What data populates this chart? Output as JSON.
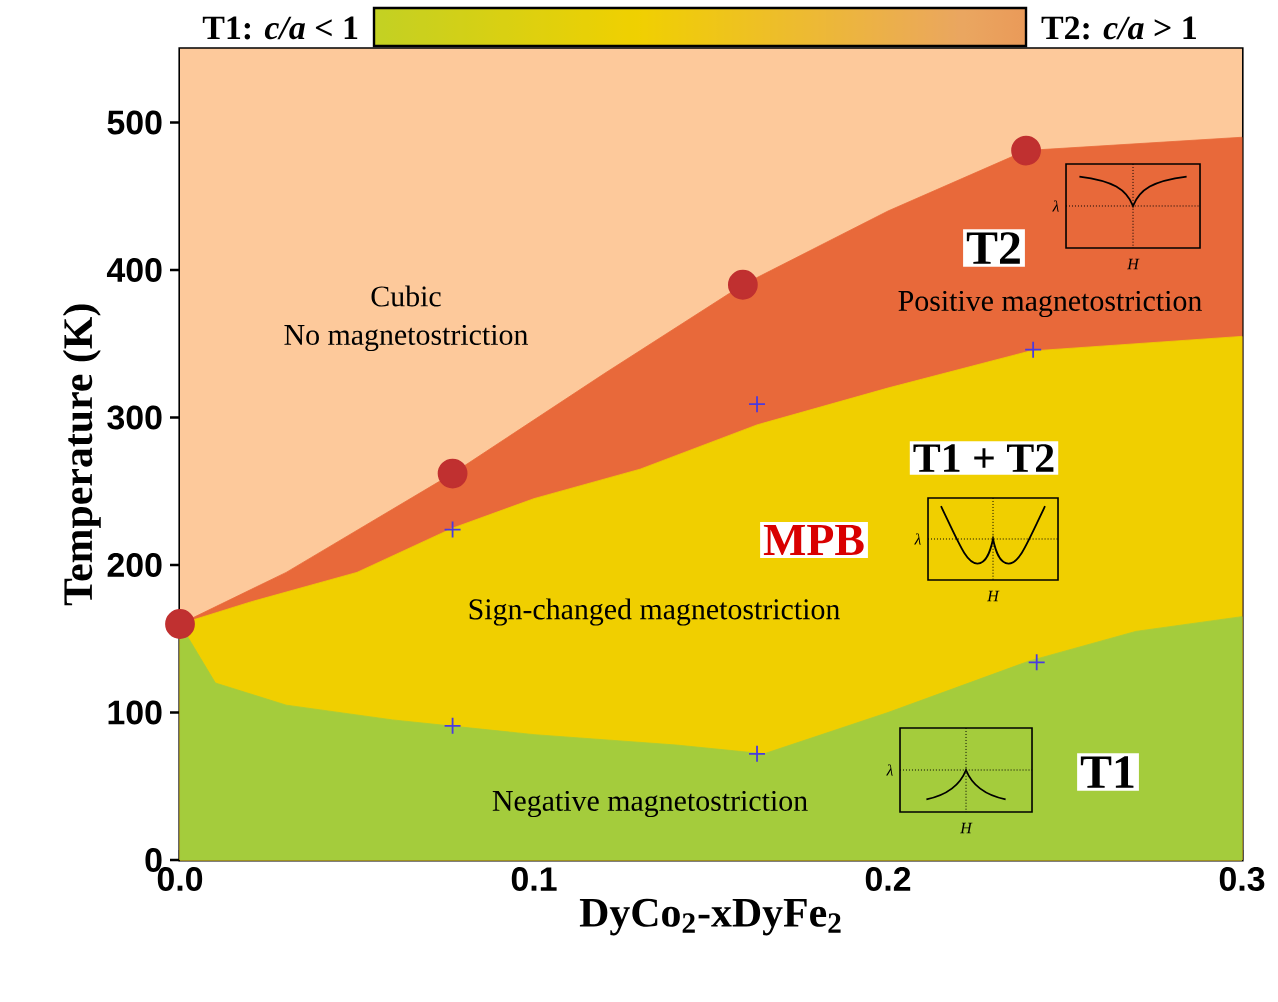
{
  "chart_data": {
    "type": "area",
    "xlabel": "DyCo$_{2}$-xDyFe$_{2}$",
    "ylabel": "Temperature (K)",
    "xlim": [
      0,
      0.3
    ],
    "ylim": [
      0,
      550
    ],
    "xticks": [
      {
        "value": 0,
        "label": "0.0"
      },
      {
        "value": 0.1,
        "label": "0.1"
      },
      {
        "value": 0.2,
        "label": "0.2"
      },
      {
        "value": 0.3,
        "label": "0.3"
      }
    ],
    "yticks": [
      0,
      100,
      200,
      300,
      400,
      500
    ],
    "series": [
      {
        "color": "#e8693a",
        "x": [
          0,
          0.03,
          0.077,
          0.12,
          0.159,
          0.2,
          0.239,
          0.3
        ],
        "values": [
          160,
          195,
          262,
          330,
          390,
          440,
          481,
          490
        ]
      },
      {
        "color": "#f0cf00",
        "x": [
          0,
          0.02,
          0.05,
          0.077,
          0.1,
          0.13,
          0.163,
          0.2,
          0.24,
          0.3
        ],
        "values": [
          160,
          175,
          195,
          225,
          245,
          265,
          295,
          320,
          345,
          355
        ]
      },
      {
        "color": "#a4cc3c",
        "x": [
          0,
          0.01,
          0.03,
          0.06,
          0.1,
          0.14,
          0.165,
          0.2,
          0.24,
          0.27,
          0.3
        ],
        "values": [
          160,
          120,
          105,
          95,
          85,
          78,
          72,
          100,
          135,
          155,
          165
        ]
      },
      {
        "type": "scatter",
        "marker": "circle",
        "color": "#c03030",
        "x": [
          0,
          0.077,
          0.159,
          0.239
        ],
        "values": [
          160,
          262,
          390,
          481
        ]
      },
      {
        "type": "scatter",
        "marker": "cross",
        "color": "#4a3ae0",
        "x": [
          0.077,
          0.077,
          0.163,
          0.163,
          0.241,
          0.242
        ],
        "values": [
          224,
          91,
          309,
          72,
          346,
          134
        ]
      }
    ],
    "annotations": [
      "T1: *c/a* < 1",
      "T2: *c/a* > 1",
      "Cubic",
      "No magnetostriction",
      "T2",
      "Positive magnetostriction",
      "T1 + T2",
      "MPB",
      "Sign-changed magnetostriction",
      "Negative magnetostriction",
      "T1",
      "λ",
      "H",
      "λ",
      "H",
      "λ",
      "H"
    ]
  }
}
